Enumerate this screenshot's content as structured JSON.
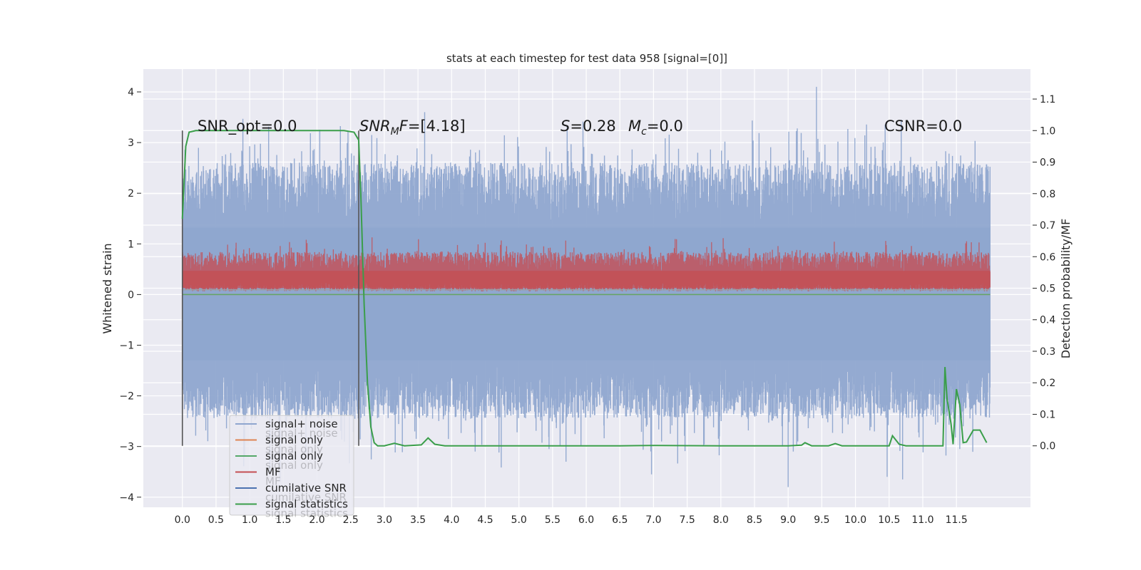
{
  "chart_data": {
    "type": "line",
    "title": "stats at each timestep for test data 958 [signal=[0]]",
    "ylabel": "Whitened strain",
    "ylabel_right": "Detection probability/MF",
    "xlim": [
      -0.58,
      12.6
    ],
    "ylim": [
      -4.2,
      4.45
    ],
    "ylim_right": [
      -0.195,
      1.195
    ],
    "grid": true,
    "legend_position": "lower-left",
    "x_ticks": [
      "0.0",
      "0.5",
      "1.0",
      "1.5",
      "2.0",
      "2.5",
      "3.0",
      "3.5",
      "4.0",
      "4.5",
      "5.0",
      "5.5",
      "6.0",
      "6.5",
      "7.0",
      "7.5",
      "8.0",
      "8.5",
      "9.0",
      "9.5",
      "10.0",
      "10.5",
      "11.0",
      "11.5"
    ],
    "y_ticks": [
      "−4",
      "−3",
      "−2",
      "−1",
      "0",
      "1",
      "2",
      "3",
      "4"
    ],
    "y_ticks_right": [
      "0.0",
      "0.1",
      "0.2",
      "0.3",
      "0.4",
      "0.5",
      "0.6",
      "0.7",
      "0.8",
      "0.9",
      "1.0",
      "1.1"
    ],
    "annotations": {
      "snr_opt": "SNR_opt=0.0",
      "snr_mf_italic": "SNR",
      "snr_mf_sub": "M",
      "snr_mf_italic2": "F",
      "snr_mf_value": "=[4.18]",
      "s_italic": "S",
      "s_value": "=0.28",
      "mc_italic": "M",
      "mc_sub": "c",
      "mc_value": "=0.0",
      "csnr": "CSNR=0.0"
    },
    "series": [
      {
        "name": "signal+ noise",
        "color": "#8fa6cf",
        "style": "dense noise, about -2.5 to +2.8 whitened strain, spikes up to ~4.1 and down to ~-3.8"
      },
      {
        "name": "signal only",
        "color": "#dd8452",
        "values_constant": 0
      },
      {
        "name": "signal only",
        "color": "#55a868",
        "values_constant": 0
      },
      {
        "name": "MF",
        "color": "#c44e52",
        "style": "noise band roughly 0.5 to 0.6 detection probability, peaks ~0.66"
      },
      {
        "name": "cumilative SNR",
        "color": "#4c72b0"
      },
      {
        "name": "signal statistics",
        "color": "#3a9e4a",
        "x": [
          0.0,
          0.05,
          0.1,
          0.2,
          0.5,
          1.0,
          1.5,
          2.0,
          2.4,
          2.55,
          2.62,
          2.65,
          2.7,
          2.75,
          2.8,
          2.85,
          2.9,
          3.0,
          3.15,
          3.3,
          3.55,
          3.65,
          3.75,
          3.9,
          4.5,
          5.5,
          6.5,
          7.0,
          8.0,
          9.0,
          9.2,
          9.25,
          9.35,
          9.6,
          9.7,
          9.8,
          10.5,
          10.55,
          10.65,
          10.75,
          11.2,
          11.3,
          11.33,
          11.36,
          11.42,
          11.45,
          11.5,
          11.55,
          11.6,
          11.65,
          11.75,
          11.85,
          11.95
        ],
        "y": [
          0.72,
          0.95,
          0.995,
          1.0,
          1.0,
          1.0,
          1.0,
          1.0,
          1.0,
          0.995,
          0.97,
          0.8,
          0.45,
          0.2,
          0.06,
          0.01,
          0.0,
          0.0,
          0.008,
          0.0,
          0.003,
          0.025,
          0.005,
          0.0,
          0.0,
          0.0,
          0.0,
          0.001,
          0.0,
          0.0,
          0.002,
          0.01,
          0.0,
          0.0,
          0.007,
          0.0,
          0.0,
          0.032,
          0.005,
          0.0,
          0.0,
          0.0,
          0.25,
          0.15,
          0.07,
          0.005,
          0.18,
          0.13,
          0.01,
          0.012,
          0.05,
          0.05,
          0.01
        ]
      },
      {
        "name": "",
        "color": "#9c9fa3",
        "style": "flat line at ~0.495 detection probability"
      }
    ],
    "vertical_markers": [
      {
        "x": 0.0,
        "y_right": [
          0.0,
          1.0
        ],
        "color": "#555555"
      },
      {
        "x": 2.62,
        "y_right": [
          0.0,
          1.0
        ],
        "color": "#555555"
      }
    ],
    "legend_entries": [
      {
        "label": "signal+ noise",
        "color": "#8fa6cf"
      },
      {
        "label": "signal only",
        "color": "#dd8452"
      },
      {
        "label": "signal only",
        "color": "#55a868"
      },
      {
        "label": "MF",
        "color": "#c44e52"
      },
      {
        "label": "cumilative SNR",
        "color": "#4c72b0"
      },
      {
        "label": "signal statistics",
        "color": "#3a9e4a"
      }
    ],
    "legend_ghost_labels": [
      "signal+ noise",
      "signal only",
      "signal only",
      "MF",
      "cumilative SNR",
      "signal statistics"
    ],
    "colors": {
      "background": "#eaeaf2",
      "grid": "#ffffff",
      "marker": "#555555"
    }
  }
}
